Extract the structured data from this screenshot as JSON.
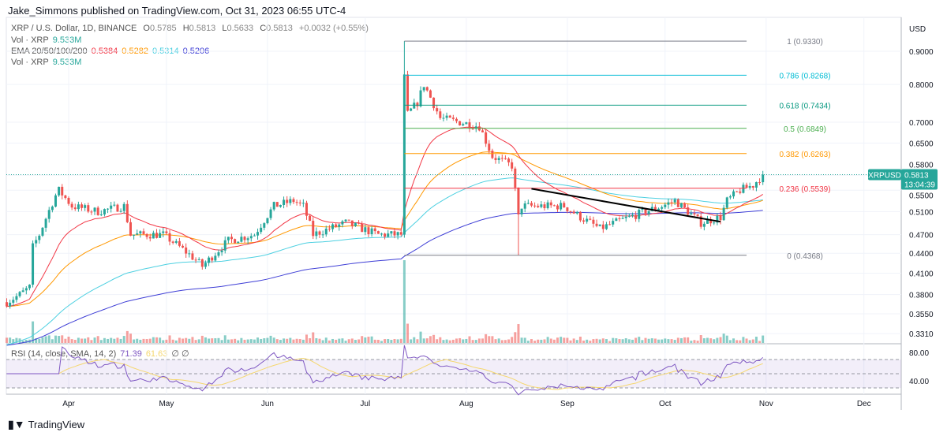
{
  "header": {
    "published": "Jake_Simmons published on TradingView.com, Oct 31, 2023 06:55 UTC-4"
  },
  "legend": {
    "symbol": "XRP / U.S. Dollar, 1D, BINANCE",
    "o_label": "O",
    "o": "0.5785",
    "h_label": "H",
    "h": "0.5813",
    "l_label": "L",
    "l": "0.5633",
    "c_label": "C",
    "c": "0.5813",
    "change": "+0.0032 (+0.55%)",
    "vol_label": "Vol · XRP",
    "vol": "9.533M",
    "ema_label": "EMA 20/50/100/200",
    "ema20": "0.5384",
    "ema50": "0.5282",
    "ema100": "0.5314",
    "ema200": "0.5206",
    "rsi_label": "RSI (14, close, SMA, 14, 2)",
    "rsi": "71.39",
    "rsi_sma": "61.63",
    "rsi_icons": "∅ ∅"
  },
  "axis": {
    "currency": "USD",
    "price_ticks": [
      "0.9000",
      "0.8000",
      "0.7000",
      "0.6500",
      "0.5800",
      "0.5500",
      "0.5100",
      "0.4700",
      "0.4400",
      "0.4100",
      "0.3800",
      "0.3550",
      "0.3310"
    ],
    "rsi_ticks": [
      "80.00",
      "40.00"
    ],
    "months": [
      "Apr",
      "May",
      "Jun",
      "Jul",
      "Aug",
      "Sep",
      "Oct",
      "Nov",
      "Dec"
    ]
  },
  "price_label": {
    "symbol": "XRPUSD",
    "price": "0.5813",
    "countdown": "13:04:39"
  },
  "footer": {
    "brand": "TradingView"
  },
  "colors": {
    "up": "#26a69a",
    "down": "#ef5350",
    "ema20": "#f23645",
    "ema50": "#ff9800",
    "ema100": "#4dd0e1",
    "ema200": "#3f3fd6",
    "rsi": "#7e57c2",
    "rsi_sma": "#f5d76e"
  },
  "chart_data": {
    "type": "candlestick",
    "scale": "log",
    "year": 2023,
    "closes": [
      [
        "03-13",
        0.37
      ],
      [
        "03-17",
        0.38
      ],
      [
        "03-20",
        0.39
      ],
      [
        "03-21",
        0.45
      ],
      [
        "03-23",
        0.47
      ],
      [
        "03-28",
        0.54
      ],
      [
        "03-29",
        0.55
      ],
      [
        "04-02",
        0.52
      ],
      [
        "04-10",
        0.51
      ],
      [
        "04-18",
        0.52
      ],
      [
        "04-20",
        0.47
      ],
      [
        "04-30",
        0.47
      ],
      [
        "05-10",
        0.43
      ],
      [
        "05-12",
        0.42
      ],
      [
        "05-20",
        0.46
      ],
      [
        "05-28",
        0.47
      ],
      [
        "06-03",
        0.52
      ],
      [
        "06-09",
        0.53
      ],
      [
        "06-12",
        0.52
      ],
      [
        "06-15",
        0.47
      ],
      [
        "06-25",
        0.49
      ],
      [
        "07-05",
        0.47
      ],
      [
        "07-12",
        0.47
      ],
      [
        "07-13",
        0.82
      ],
      [
        "07-14",
        0.72
      ],
      [
        "07-17",
        0.75
      ],
      [
        "07-19",
        0.8
      ],
      [
        "07-24",
        0.71
      ],
      [
        "08-05",
        0.69
      ],
      [
        "08-09",
        0.62
      ],
      [
        "08-15",
        0.6
      ],
      [
        "08-17",
        0.5
      ],
      [
        "08-18",
        0.52
      ],
      [
        "08-31",
        0.52
      ],
      [
        "09-05",
        0.5
      ],
      [
        "09-11",
        0.48
      ],
      [
        "09-20",
        0.5
      ],
      [
        "09-30",
        0.52
      ],
      [
        "10-04",
        0.53
      ],
      [
        "10-12",
        0.49
      ],
      [
        "10-18",
        0.5
      ],
      [
        "10-20",
        0.53
      ],
      [
        "10-24",
        0.55
      ],
      [
        "10-28",
        0.56
      ],
      [
        "10-31",
        0.5813
      ]
    ],
    "extremes": [
      {
        "date": "07-13",
        "high": 0.933
      },
      {
        "date": "08-17",
        "low": 0.4368
      }
    ],
    "fib": {
      "from": "07-13",
      "to": "10-26",
      "levels": [
        {
          "label": "1 (0.9330)",
          "value": 0.933,
          "color": "#787b86"
        },
        {
          "label": "0.786 (0.8268)",
          "value": 0.8268,
          "color": "#00bcd4"
        },
        {
          "label": "0.618 (0.7434)",
          "value": 0.7434,
          "color": "#089981"
        },
        {
          "label": "0.5 (0.6849)",
          "value": 0.6849,
          "color": "#4caf50"
        },
        {
          "label": "0.382 (0.6263)",
          "value": 0.6263,
          "color": "#ff9800"
        },
        {
          "label": "0.236 (0.5539)",
          "value": 0.5539,
          "color": "#f23645"
        },
        {
          "label": "0 (0.4368)",
          "value": 0.4368,
          "color": "#787b86"
        }
      ]
    },
    "trendline": [
      [
        "08-21",
        0.553
      ],
      [
        "10-18",
        0.492
      ]
    ],
    "rsi_bands": [
      70,
      50,
      30
    ]
  }
}
